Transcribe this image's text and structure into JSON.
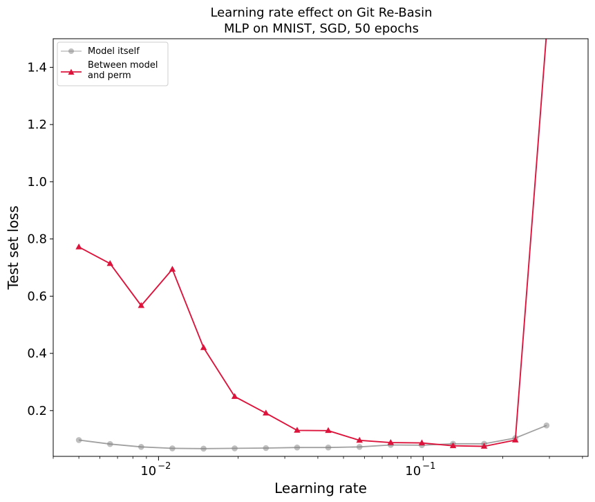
{
  "chart_data": {
    "type": "line",
    "title": [
      "Learning rate effect on Git Re-Basin",
      "MLP on MNIST, SGD, 50 epochs"
    ],
    "xlabel": "Learning rate",
    "ylabel": "Test set loss",
    "x_scale": "log",
    "xlim": [
      0.004,
      0.42
    ],
    "ylim": [
      0.04,
      1.5
    ],
    "x_ticks": [
      {
        "value": 0.01,
        "base": "10",
        "exp": "−2"
      },
      {
        "value": 0.1,
        "base": "10",
        "exp": "−1"
      }
    ],
    "y_ticks": [
      0.2,
      0.4,
      0.6,
      0.8,
      1.0,
      1.2,
      1.4
    ],
    "y_tick_labels": [
      "0.2",
      "0.4",
      "0.6",
      "0.8",
      "1.0",
      "1.2",
      "1.4"
    ],
    "grid": false,
    "legend_position": "upper-left",
    "x": [
      0.005,
      0.00656,
      0.0086,
      0.01128,
      0.0148,
      0.0194,
      0.02546,
      0.0334,
      0.0438,
      0.05747,
      0.0754,
      0.09888,
      0.1297,
      0.17,
      0.223,
      0.2926
    ],
    "series": [
      {
        "name": "Model itself",
        "marker": "circle",
        "color": "#808080",
        "values": [
          0.097,
          0.083,
          0.073,
          0.068,
          0.067,
          0.068,
          0.069,
          0.071,
          0.071,
          0.073,
          0.08,
          0.079,
          0.084,
          0.084,
          0.104,
          0.148
        ]
      },
      {
        "name": "Between model\nand perm",
        "marker": "triangle",
        "color": "#dc143c",
        "values": [
          0.772,
          0.714,
          0.567,
          0.694,
          0.42,
          0.249,
          0.191,
          0.131,
          0.13,
          0.096,
          0.088,
          0.087,
          0.077,
          0.075,
          0.097,
          1.52
        ]
      }
    ]
  }
}
